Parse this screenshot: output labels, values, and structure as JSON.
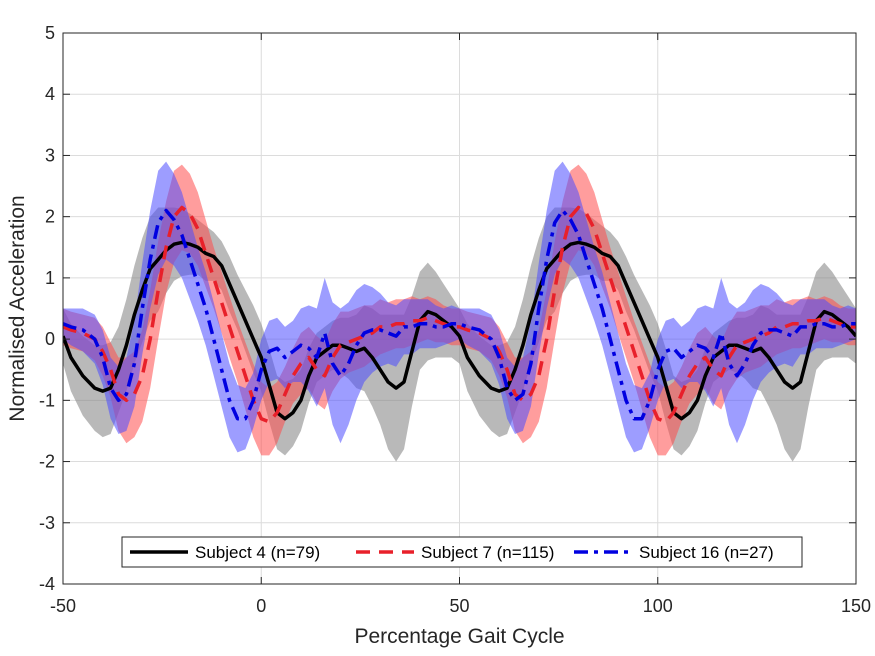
{
  "chart_data": {
    "type": "line",
    "xlabel": "Percentage Gait Cycle",
    "ylabel": "Normalised Acceleration",
    "xlim": [
      -50,
      150
    ],
    "ylim": [
      -4,
      5
    ],
    "xticks": [
      -50,
      0,
      50,
      100,
      150
    ],
    "yticks": [
      -4,
      -3,
      -2,
      -1,
      0,
      1,
      2,
      3,
      4,
      5
    ],
    "grid": true,
    "legend_position": "bottom-center",
    "period": 100,
    "series": [
      {
        "name": "Subject 4 (n=79)",
        "color": "#000000",
        "band_color": "#808080",
        "line_style": "solid",
        "x": [
          -50,
          -48,
          -45,
          -42,
          -40,
          -38,
          -36,
          -34,
          -32,
          -30,
          -28,
          -26,
          -24,
          -22,
          -20,
          -18,
          -16,
          -14,
          -12,
          -10,
          -8,
          -6,
          -4,
          -2,
          0,
          2,
          4,
          6,
          8,
          10,
          12,
          14,
          16,
          18,
          20,
          22,
          24,
          26,
          28,
          30,
          32,
          34,
          36,
          38,
          40,
          42,
          44,
          46,
          48,
          50
        ],
        "mean": [
          0.05,
          -0.3,
          -0.6,
          -0.8,
          -0.85,
          -0.8,
          -0.5,
          -0.1,
          0.4,
          0.8,
          1.15,
          1.3,
          1.45,
          1.55,
          1.58,
          1.55,
          1.5,
          1.4,
          1.35,
          1.2,
          0.9,
          0.6,
          0.3,
          0.0,
          -0.3,
          -0.75,
          -1.2,
          -1.3,
          -1.2,
          -1.0,
          -0.6,
          -0.3,
          -0.2,
          -0.1,
          -0.1,
          -0.15,
          -0.2,
          -0.15,
          -0.3,
          -0.5,
          -0.7,
          -0.8,
          -0.7,
          -0.2,
          0.3,
          0.45,
          0.4,
          0.3,
          0.2,
          0.05
        ],
        "sd": [
          0.45,
          0.55,
          0.65,
          0.7,
          0.75,
          0.75,
          0.7,
          0.75,
          0.8,
          0.85,
          0.85,
          0.85,
          0.7,
          0.6,
          0.55,
          0.5,
          0.45,
          0.45,
          0.4,
          0.4,
          0.45,
          0.45,
          0.5,
          0.55,
          0.55,
          0.6,
          0.6,
          0.6,
          0.55,
          0.5,
          0.45,
          0.4,
          0.4,
          0.4,
          0.45,
          0.5,
          0.6,
          0.7,
          0.8,
          0.9,
          1.1,
          1.2,
          1.1,
          0.9,
          0.8,
          0.8,
          0.7,
          0.6,
          0.5,
          0.45
        ]
      },
      {
        "name": "Subject 7 (n=115)",
        "color": "#e8202a",
        "band_color": "#ff4d4d",
        "line_style": "dashed",
        "x": [
          -50,
          -48,
          -45,
          -42,
          -40,
          -38,
          -36,
          -34,
          -32,
          -30,
          -28,
          -26,
          -24,
          -22,
          -20,
          -18,
          -16,
          -14,
          -12,
          -10,
          -8,
          -6,
          -4,
          -2,
          0,
          2,
          4,
          6,
          8,
          10,
          12,
          14,
          16,
          18,
          20,
          22,
          24,
          26,
          28,
          30,
          32,
          34,
          36,
          38,
          40,
          42,
          44,
          46,
          48,
          50
        ],
        "mean": [
          0.2,
          0.15,
          0.1,
          0.0,
          -0.2,
          -0.5,
          -0.9,
          -1.0,
          -0.9,
          -0.6,
          0.0,
          0.8,
          1.5,
          2.0,
          2.15,
          2.05,
          1.8,
          1.4,
          1.0,
          0.6,
          0.2,
          -0.2,
          -0.6,
          -1.0,
          -1.3,
          -1.35,
          -1.2,
          -0.9,
          -0.6,
          -0.4,
          -0.3,
          -0.5,
          -0.6,
          -0.3,
          -0.1,
          -0.05,
          0.0,
          0.05,
          0.1,
          0.2,
          0.2,
          0.25,
          0.25,
          0.3,
          0.3,
          0.35,
          0.3,
          0.25,
          0.2,
          0.2
        ],
        "sd": [
          0.3,
          0.3,
          0.3,
          0.35,
          0.4,
          0.45,
          0.6,
          0.7,
          0.7,
          0.75,
          0.8,
          0.8,
          0.75,
          0.75,
          0.7,
          0.65,
          0.6,
          0.55,
          0.5,
          0.5,
          0.5,
          0.5,
          0.55,
          0.6,
          0.6,
          0.55,
          0.5,
          0.45,
          0.45,
          0.5,
          0.5,
          0.55,
          0.55,
          0.55,
          0.55,
          0.5,
          0.5,
          0.5,
          0.45,
          0.45,
          0.4,
          0.4,
          0.4,
          0.4,
          0.35,
          0.35,
          0.35,
          0.3,
          0.3,
          0.3
        ]
      },
      {
        "name": "Subject 16 (n=27)",
        "color": "#0000e0",
        "band_color": "#4d4dff",
        "line_style": "dashdot",
        "x": [
          -50,
          -48,
          -45,
          -42,
          -40,
          -38,
          -36,
          -34,
          -32,
          -30,
          -28,
          -26,
          -24,
          -22,
          -20,
          -18,
          -16,
          -14,
          -12,
          -10,
          -8,
          -6,
          -4,
          -2,
          0,
          2,
          4,
          6,
          8,
          10,
          12,
          14,
          16,
          18,
          20,
          22,
          24,
          26,
          28,
          30,
          32,
          34,
          36,
          38,
          40,
          42,
          44,
          46,
          48,
          50
        ],
        "mean": [
          0.25,
          0.2,
          0.15,
          0.0,
          -0.3,
          -0.8,
          -1.0,
          -0.9,
          -0.4,
          0.5,
          1.3,
          1.9,
          2.1,
          1.95,
          1.7,
          1.3,
          0.9,
          0.5,
          0.0,
          -0.5,
          -1.0,
          -1.3,
          -1.3,
          -1.0,
          -0.5,
          -0.2,
          -0.15,
          -0.3,
          -0.2,
          -0.1,
          -0.15,
          -0.3,
          0.1,
          -0.4,
          -0.6,
          -0.4,
          -0.1,
          0.1,
          0.15,
          0.15,
          0.1,
          0.05,
          0.2,
          0.2,
          0.25,
          0.25,
          0.2,
          0.2,
          0.25,
          0.25
        ],
        "sd": [
          0.25,
          0.3,
          0.35,
          0.4,
          0.45,
          0.5,
          0.55,
          0.6,
          0.7,
          0.75,
          0.8,
          0.85,
          0.8,
          0.75,
          0.7,
          0.65,
          0.6,
          0.6,
          0.6,
          0.6,
          0.6,
          0.55,
          0.5,
          0.45,
          0.5,
          0.5,
          0.5,
          0.5,
          0.5,
          0.6,
          0.7,
          0.8,
          0.9,
          1.0,
          1.1,
          1.0,
          0.9,
          0.8,
          0.7,
          0.6,
          0.5,
          0.5,
          0.45,
          0.45,
          0.4,
          0.4,
          0.35,
          0.3,
          0.3,
          0.25
        ]
      }
    ]
  }
}
